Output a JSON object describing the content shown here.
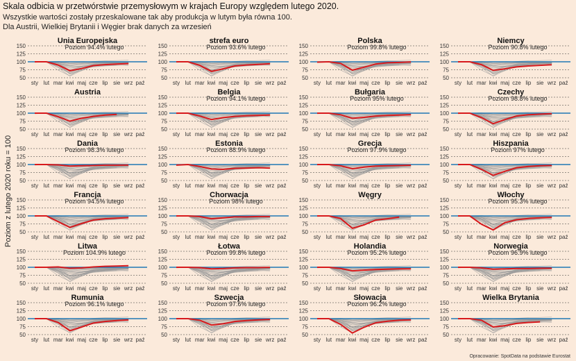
{
  "title": "Skala odbicia w przetwórstwie przemysłowym w krajach Europy względem lutego 2020.",
  "subtitle1": "Wszystkie wartości zostały przeskalowane tak aby produkcja w lutym była równa 100.",
  "subtitle2": "Dla Austrii, Wielkiej Brytanii i Węgier brak danych za wrzesień",
  "ylabel": "Poziom z lutego 2020 roku = 100",
  "caption": "Opracowanie: SpotData na podstawie Eurostat",
  "colors": {
    "background": "#fbeadb",
    "highlight": "#d7191c",
    "reference": "#1f78b4",
    "others": "#9a9a9a"
  },
  "chart_data": {
    "type": "line",
    "layout": "small-multiples 4x6",
    "months": [
      "sty",
      "lut",
      "mar",
      "kwi",
      "maj",
      "cze",
      "lip",
      "sie",
      "wrz",
      "paź"
    ],
    "yticks": [
      50,
      75,
      100,
      125,
      150
    ],
    "ylim": [
      50,
      150
    ],
    "reference_line": 100,
    "panels": [
      {
        "name": "Unia Europejska",
        "label": "Poziom 94.4% lutego",
        "values": [
          100,
          100,
          90,
          72,
          79,
          88,
          91,
          93,
          94.4
        ]
      },
      {
        "name": "strefa euro",
        "label": "Poziom 93.6% lutego",
        "values": [
          100,
          100,
          89,
          70,
          78,
          87,
          90,
          92,
          93.6
        ]
      },
      {
        "name": "Polska",
        "label": "Poziom 99.8% lutego",
        "values": [
          99,
          100,
          95,
          74,
          83,
          93,
          97,
          98,
          99.8
        ]
      },
      {
        "name": "Niemcy",
        "label": "Poziom 90.8% lutego",
        "values": [
          100,
          100,
          91,
          73,
          78,
          84,
          87,
          89,
          90.8
        ]
      },
      {
        "name": "Austria",
        "label": "",
        "values": [
          100,
          100,
          89,
          75,
          84,
          90,
          94,
          96
        ]
      },
      {
        "name": "Belgia",
        "label": "Poziom 94.1% lutego",
        "values": [
          100,
          100,
          91,
          80,
          86,
          90,
          92,
          93,
          94.1
        ]
      },
      {
        "name": "Bułgaria",
        "label": "Poziom 95% lutego",
        "values": [
          100,
          100,
          95,
          84,
          87,
          91,
          93,
          94,
          95
        ]
      },
      {
        "name": "Czechy",
        "label": "Poziom 98.8% lutego",
        "values": [
          100,
          100,
          86,
          67,
          80,
          91,
          95,
          97,
          98.8
        ]
      },
      {
        "name": "Dania",
        "label": "Poziom 98.3% lutego",
        "values": [
          100,
          100,
          99,
          95,
          96,
          97,
          98,
          98,
          98.3
        ]
      },
      {
        "name": "Estonia",
        "label": "Poziom 88.9% lutego",
        "values": [
          98,
          100,
          94,
          86,
          85,
          88,
          89,
          90,
          88.9
        ]
      },
      {
        "name": "Grecja",
        "label": "Poziom 97.9% lutego",
        "values": [
          100,
          100,
          96,
          87,
          92,
          95,
          96,
          97,
          97.9
        ]
      },
      {
        "name": "Hiszpania",
        "label": "Poziom 97% lutego",
        "values": [
          100,
          100,
          85,
          66,
          79,
          90,
          94,
          96,
          97
        ]
      },
      {
        "name": "Francja",
        "label": "Poziom 94.5% lutego",
        "values": [
          100,
          100,
          82,
          64,
          76,
          87,
          91,
          93,
          94.5
        ]
      },
      {
        "name": "Chorwacja",
        "label": "Poziom 98% lutego",
        "values": [
          100,
          100,
          98,
          91,
          94,
          97,
          97,
          98,
          98
        ]
      },
      {
        "name": "Węgry",
        "label": "",
        "values": [
          100,
          100,
          92,
          61,
          72,
          87,
          91,
          96
        ]
      },
      {
        "name": "Włochy",
        "label": "Poziom 95.3% lutego",
        "values": [
          100,
          100,
          74,
          56,
          79,
          88,
          92,
          94,
          95.3
        ]
      },
      {
        "name": "Litwa",
        "label": "Poziom 104.9% lutego",
        "values": [
          100,
          100,
          101,
          97,
          98,
          101,
          103,
          104,
          104.9
        ]
      },
      {
        "name": "Łotwa",
        "label": "Poziom 99.8% lutego",
        "values": [
          100,
          100,
          99,
          95,
          96,
          98,
          99,
          99,
          99.8
        ]
      },
      {
        "name": "Holandia",
        "label": "Poziom 95.2% lutego",
        "values": [
          100,
          100,
          96,
          89,
          91,
          93,
          94,
          95,
          95.2
        ]
      },
      {
        "name": "Norwegia",
        "label": "Poziom 96.9% lutego",
        "values": [
          100,
          100,
          98,
          94,
          95,
          96,
          96,
          97,
          96.9
        ]
      },
      {
        "name": "Rumunia",
        "label": "Poziom 96.1% lutego",
        "values": [
          100,
          100,
          88,
          62,
          74,
          86,
          91,
          94,
          96.1
        ]
      },
      {
        "name": "Szwecja",
        "label": "Poziom 97.6% lutego",
        "values": [
          100,
          100,
          95,
          80,
          84,
          91,
          94,
          96,
          97.6
        ]
      },
      {
        "name": "Słowacja",
        "label": "Poziom 96.2% lutego",
        "values": [
          100,
          100,
          82,
          55,
          73,
          87,
          92,
          95,
          96.2
        ]
      },
      {
        "name": "Wielka Brytania",
        "label": "",
        "values": [
          100,
          100,
          95,
          74,
          78,
          85,
          88,
          90
        ]
      }
    ]
  }
}
